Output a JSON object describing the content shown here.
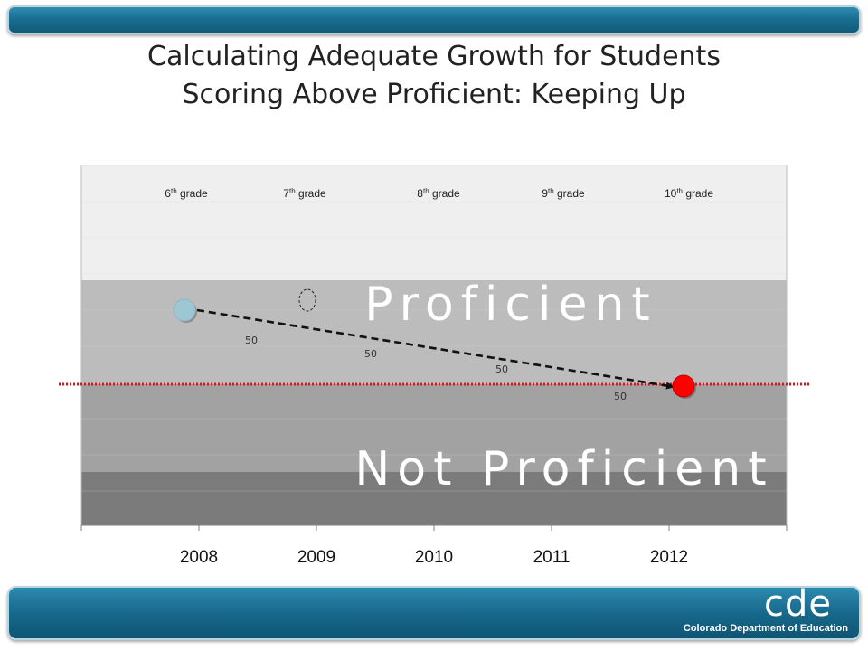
{
  "slide": {
    "title_line1": "Calculating Adequate Growth for Students",
    "title_line2": "Scoring Above Proficient: Keeping Up"
  },
  "logo": {
    "letters": "cde",
    "org_name": "Colorado Department of Education"
  },
  "colors": {
    "header_bar": "#1a6f92",
    "band_top": "#efefef",
    "band_proficient": "#bcbcbc",
    "band_not_proficient": "#a2a2a2",
    "band_bottom": "#7b7b7b",
    "start_point": "#9fc6d3",
    "end_point": "#ff0000",
    "threshold_line": "#e0151b"
  },
  "chart_data": {
    "type": "scatter",
    "x_axis": {
      "categories": [
        "2008",
        "2009",
        "2010",
        "2011",
        "2012"
      ]
    },
    "grade_labels": [
      {
        "grade": "6",
        "suffix": "th",
        "word": "grade"
      },
      {
        "grade": "7",
        "suffix": "th",
        "word": "grade"
      },
      {
        "grade": "8",
        "suffix": "th",
        "word": "grade"
      },
      {
        "grade": "9",
        "suffix": "th",
        "word": "grade"
      },
      {
        "grade": "10",
        "suffix": "th",
        "word": "grade"
      }
    ],
    "bands": [
      {
        "label": ""
      },
      {
        "label": "Proficient"
      },
      {
        "label": "Not Proficient"
      },
      {
        "label": ""
      }
    ],
    "growth_labels": [
      "50",
      "50",
      "50",
      "50"
    ],
    "points": [
      {
        "year": "2008",
        "role": "start"
      },
      {
        "year": "2009",
        "role": "projected"
      },
      {
        "year": "2012",
        "role": "end"
      }
    ],
    "grid": true
  }
}
